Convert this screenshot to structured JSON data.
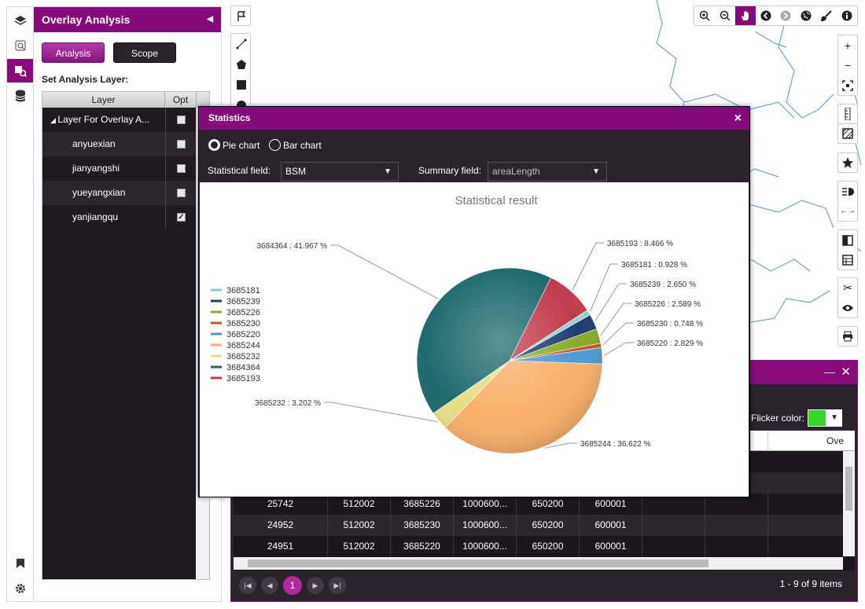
{
  "rail": {
    "items": [
      {
        "icon": "layers-icon"
      },
      {
        "icon": "search-icon"
      },
      {
        "icon": "overlay-analysis-icon",
        "active": true
      },
      {
        "icon": "database-icon"
      },
      {
        "icon": "bookmark-icon"
      },
      {
        "icon": "gear-icon"
      }
    ]
  },
  "panel": {
    "title": "Overlay Analysis",
    "tabs": {
      "analysis": "Analysis",
      "scope": "Scope"
    },
    "set_label": "Set Analysis Layer:",
    "columns": [
      "Layer",
      "Opt"
    ],
    "layers": [
      {
        "name": "Layer For Overlay A...",
        "checked": false,
        "group": true
      },
      {
        "name": "anyuexian",
        "checked": false
      },
      {
        "name": "jianyangshi",
        "checked": false
      },
      {
        "name": "yueyangxian",
        "checked": false
      },
      {
        "name": "yanjiangqu",
        "checked": true
      }
    ]
  },
  "stats": {
    "title": "Statistics",
    "chart_types": {
      "pie": "Pie chart",
      "bar": "Bar chart",
      "selected": "pie"
    },
    "stat_field_label": "Statistical field:",
    "stat_field_value": "BSM",
    "summary_field_label": "Summary field:",
    "summary_field_value": "areaLength"
  },
  "chart_data": {
    "type": "pie",
    "title": "Statistical result",
    "legend_position": "left",
    "categories": [
      "3685193",
      "3685181",
      "3685239",
      "3685226",
      "3685230",
      "3685220",
      "3685244",
      "3685232",
      "3684364"
    ],
    "values": [
      8.466,
      0.928,
      2.65,
      2.589,
      0.748,
      2.829,
      36.622,
      3.202,
      41.967
    ],
    "labels": [
      "3685193 : 8.466 %",
      "3685181 : 0.928 %",
      "3685239 : 2.650 %",
      "3685226 : 2.589 %",
      "3685230 : 0.748 %",
      "3685220 : 2.829 %",
      "3685244 : 36.622 %",
      "3685232 : 3.202 %",
      "3684364 : 41.967 %"
    ],
    "colors": [
      "#c23a4c",
      "#8fd2d2",
      "#1d3f70",
      "#8bac2a",
      "#c8571e",
      "#4b9ad6",
      "#f8b06a",
      "#e5dd84",
      "#1d6a6c"
    ],
    "legend": [
      "3685181",
      "3685239",
      "3685226",
      "3685230",
      "3685220",
      "3685244",
      "3685232",
      "3684364",
      "3685193"
    ],
    "legend_colors": [
      "#7fcfd0",
      "#1d3f70",
      "#8bac2a",
      "#c8571e",
      "#4b9ad6",
      "#f8b06a",
      "#e5dd84",
      "#1d6a6c",
      "#c23a4c"
    ]
  },
  "attr": {
    "flicker_label": "Flicker color:",
    "flicker_color": "#3bd42a",
    "header_visible": "Ove",
    "rows": [
      [
        "25742",
        "512002",
        "3685226",
        "1000600...",
        "650200",
        "600001"
      ],
      [
        "24952",
        "512002",
        "3685230",
        "1000600...",
        "650200",
        "600001"
      ],
      [
        "24951",
        "512002",
        "3685220",
        "1000600...",
        "650200",
        "600001"
      ]
    ],
    "pager": {
      "current": "1",
      "info": "1 - 9 of 9 items"
    }
  },
  "toolbar_top": [
    "zoom-in-icon",
    "zoom-out-icon",
    "pan-hand-icon",
    "back-icon",
    "forward-icon",
    "globe-icon",
    "brush-icon",
    "info-icon"
  ],
  "toolbar_right": [
    "plus-icon",
    "minus-icon",
    "full-extent-icon",
    "measure-distance-icon",
    "measure-area-icon",
    "favorite-icon",
    "legend-icon",
    "swipe-icon",
    "compare-icon",
    "table-icon",
    "scissors-icon",
    "eye-icon",
    "print-icon"
  ],
  "draw_tools": [
    "flag-icon",
    "polyline-icon",
    "pentagon-icon",
    "rectangle-icon",
    "circle-icon"
  ]
}
